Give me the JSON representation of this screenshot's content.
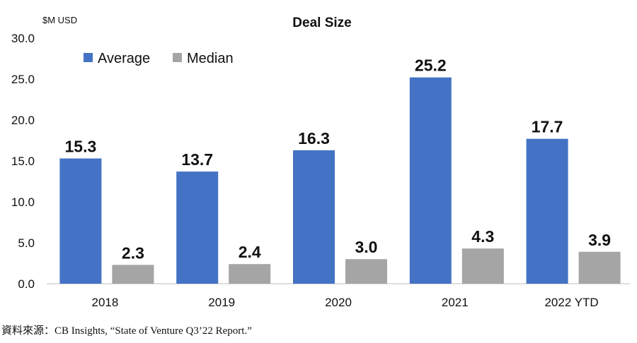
{
  "chart_data": {
    "type": "bar",
    "title": "Deal Size",
    "unit_label": "$M USD",
    "categories": [
      "2018",
      "2019",
      "2020",
      "2021",
      "2022 YTD"
    ],
    "series": [
      {
        "name": "Average",
        "color": "#4472C4",
        "values": [
          15.3,
          13.7,
          16.3,
          25.2,
          17.7
        ]
      },
      {
        "name": "Median",
        "color": "#A5A5A5",
        "values": [
          2.3,
          2.4,
          3.0,
          4.3,
          3.9
        ]
      }
    ],
    "ylim": [
      0,
      30
    ],
    "yticks": [
      "0.0",
      "5.0",
      "10.0",
      "15.0",
      "20.0",
      "25.0",
      "30.0"
    ],
    "grid": false,
    "legend_position": "top-left"
  },
  "source": "資料來源：CB Insights, “State of Venture Q3’22 Report.”"
}
